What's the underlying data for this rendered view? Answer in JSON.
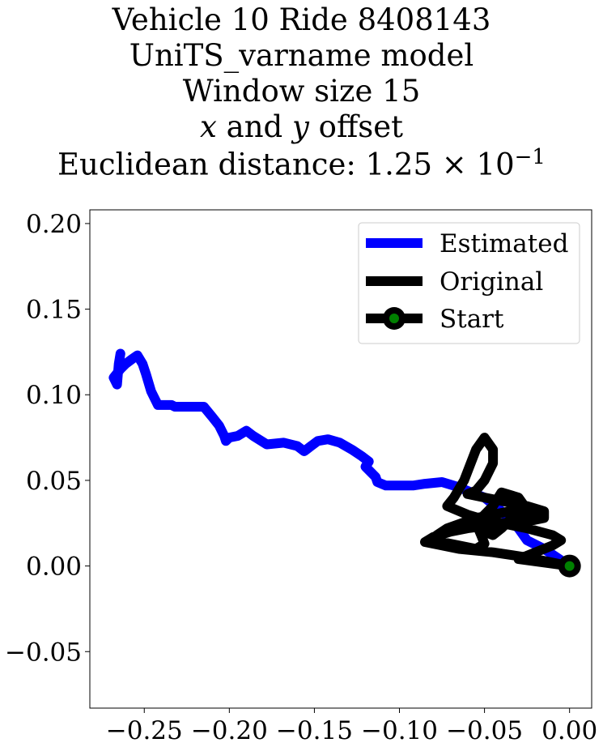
{
  "chart_data": {
    "type": "line",
    "title_lines": [
      "Vehicle 10 Ride 8408143",
      "UniTS_varname model",
      "Window size 15",
      "x and y offset",
      "Euclidean distance: 1.25 × 10⁻¹"
    ],
    "title_math": {
      "x_var": "x",
      "and_text": " and ",
      "y_var": "y",
      "offset_text": " offset",
      "distance_prefix": "Euclidean distance: 1.25 × 10",
      "distance_exp": "−1"
    },
    "xlabel": "",
    "ylabel": "",
    "xlim": [
      -0.282,
      0.013
    ],
    "ylim": [
      -0.083,
      0.208
    ],
    "xticks": [
      -0.25,
      -0.2,
      -0.15,
      -0.1,
      -0.05,
      0.0
    ],
    "xtick_labels": [
      "−0.25",
      "−0.20",
      "−0.15",
      "−0.10",
      "−0.05",
      "0.00"
    ],
    "yticks": [
      -0.05,
      0.0,
      0.05,
      0.1,
      0.15,
      0.2
    ],
    "ytick_labels": [
      "−0.05",
      "0.00",
      "0.05",
      "0.10",
      "0.15",
      "0.20"
    ],
    "grid": false,
    "legend_position": "upper right",
    "series": [
      {
        "name": "Estimated",
        "color": "#0000ff",
        "x": [
          0.0,
          -0.015,
          -0.025,
          -0.03,
          -0.04,
          -0.05,
          -0.058,
          -0.065,
          -0.075,
          -0.085,
          -0.092,
          -0.1,
          -0.108,
          -0.113,
          -0.114,
          -0.117,
          -0.12,
          -0.118,
          -0.122,
          -0.128,
          -0.135,
          -0.142,
          -0.148,
          -0.152,
          -0.156,
          -0.16,
          -0.168,
          -0.178,
          -0.186,
          -0.19,
          -0.195,
          -0.2,
          -0.202,
          -0.203,
          -0.206,
          -0.21,
          -0.215,
          -0.222,
          -0.229,
          -0.232,
          -0.234,
          -0.237,
          -0.242,
          -0.246,
          -0.249,
          -0.251,
          -0.254,
          -0.257,
          -0.261,
          -0.264,
          -0.268,
          -0.266,
          -0.265,
          -0.264
        ],
        "y": [
          0.0,
          0.01,
          0.015,
          0.022,
          0.032,
          0.04,
          0.043,
          0.046,
          0.049,
          0.048,
          0.047,
          0.047,
          0.047,
          0.049,
          0.052,
          0.055,
          0.058,
          0.061,
          0.064,
          0.068,
          0.072,
          0.074,
          0.073,
          0.07,
          0.067,
          0.07,
          0.072,
          0.071,
          0.076,
          0.079,
          0.076,
          0.075,
          0.073,
          0.076,
          0.082,
          0.087,
          0.093,
          0.093,
          0.093,
          0.093,
          0.094,
          0.094,
          0.094,
          0.102,
          0.112,
          0.118,
          0.123,
          0.121,
          0.118,
          0.115,
          0.11,
          0.106,
          0.118,
          0.124
        ]
      },
      {
        "name": "Original",
        "color": "#000000",
        "x": [
          0.0,
          -0.025,
          -0.045,
          -0.065,
          -0.075,
          -0.085,
          -0.08,
          -0.07,
          -0.06,
          -0.045,
          -0.03,
          -0.015,
          -0.015,
          -0.025,
          -0.04,
          -0.05,
          -0.06,
          -0.055,
          -0.05,
          -0.045,
          -0.045,
          -0.05,
          -0.055,
          -0.062,
          -0.068,
          -0.072,
          -0.06,
          -0.05,
          -0.04,
          -0.03,
          -0.02,
          -0.035,
          -0.055,
          -0.072,
          -0.078,
          -0.08,
          -0.065,
          -0.055,
          -0.05,
          -0.052,
          -0.055,
          -0.05,
          -0.045,
          -0.04,
          -0.03,
          -0.025,
          -0.035,
          -0.04,
          -0.045,
          -0.05,
          -0.055,
          -0.04,
          -0.025,
          -0.01,
          -0.005,
          -0.01,
          -0.02,
          -0.03,
          0.0
        ],
        "y": [
          0.0,
          0.005,
          0.008,
          0.01,
          0.012,
          0.014,
          0.017,
          0.02,
          0.022,
          0.024,
          0.025,
          0.028,
          0.032,
          0.035,
          0.038,
          0.04,
          0.042,
          0.044,
          0.05,
          0.06,
          0.068,
          0.075,
          0.068,
          0.05,
          0.04,
          0.035,
          0.03,
          0.027,
          0.025,
          0.026,
          0.03,
          0.032,
          0.028,
          0.022,
          0.018,
          0.015,
          0.012,
          0.01,
          0.013,
          0.018,
          0.025,
          0.03,
          0.035,
          0.043,
          0.04,
          0.033,
          0.027,
          0.022,
          0.018,
          0.02,
          0.023,
          0.025,
          0.022,
          0.018,
          0.015,
          0.012,
          0.008,
          0.004,
          0.0
        ]
      },
      {
        "name": "Start",
        "color": "#000000",
        "marker_face": "#008000",
        "x": [
          0.0
        ],
        "y": [
          0.0
        ]
      }
    ]
  }
}
